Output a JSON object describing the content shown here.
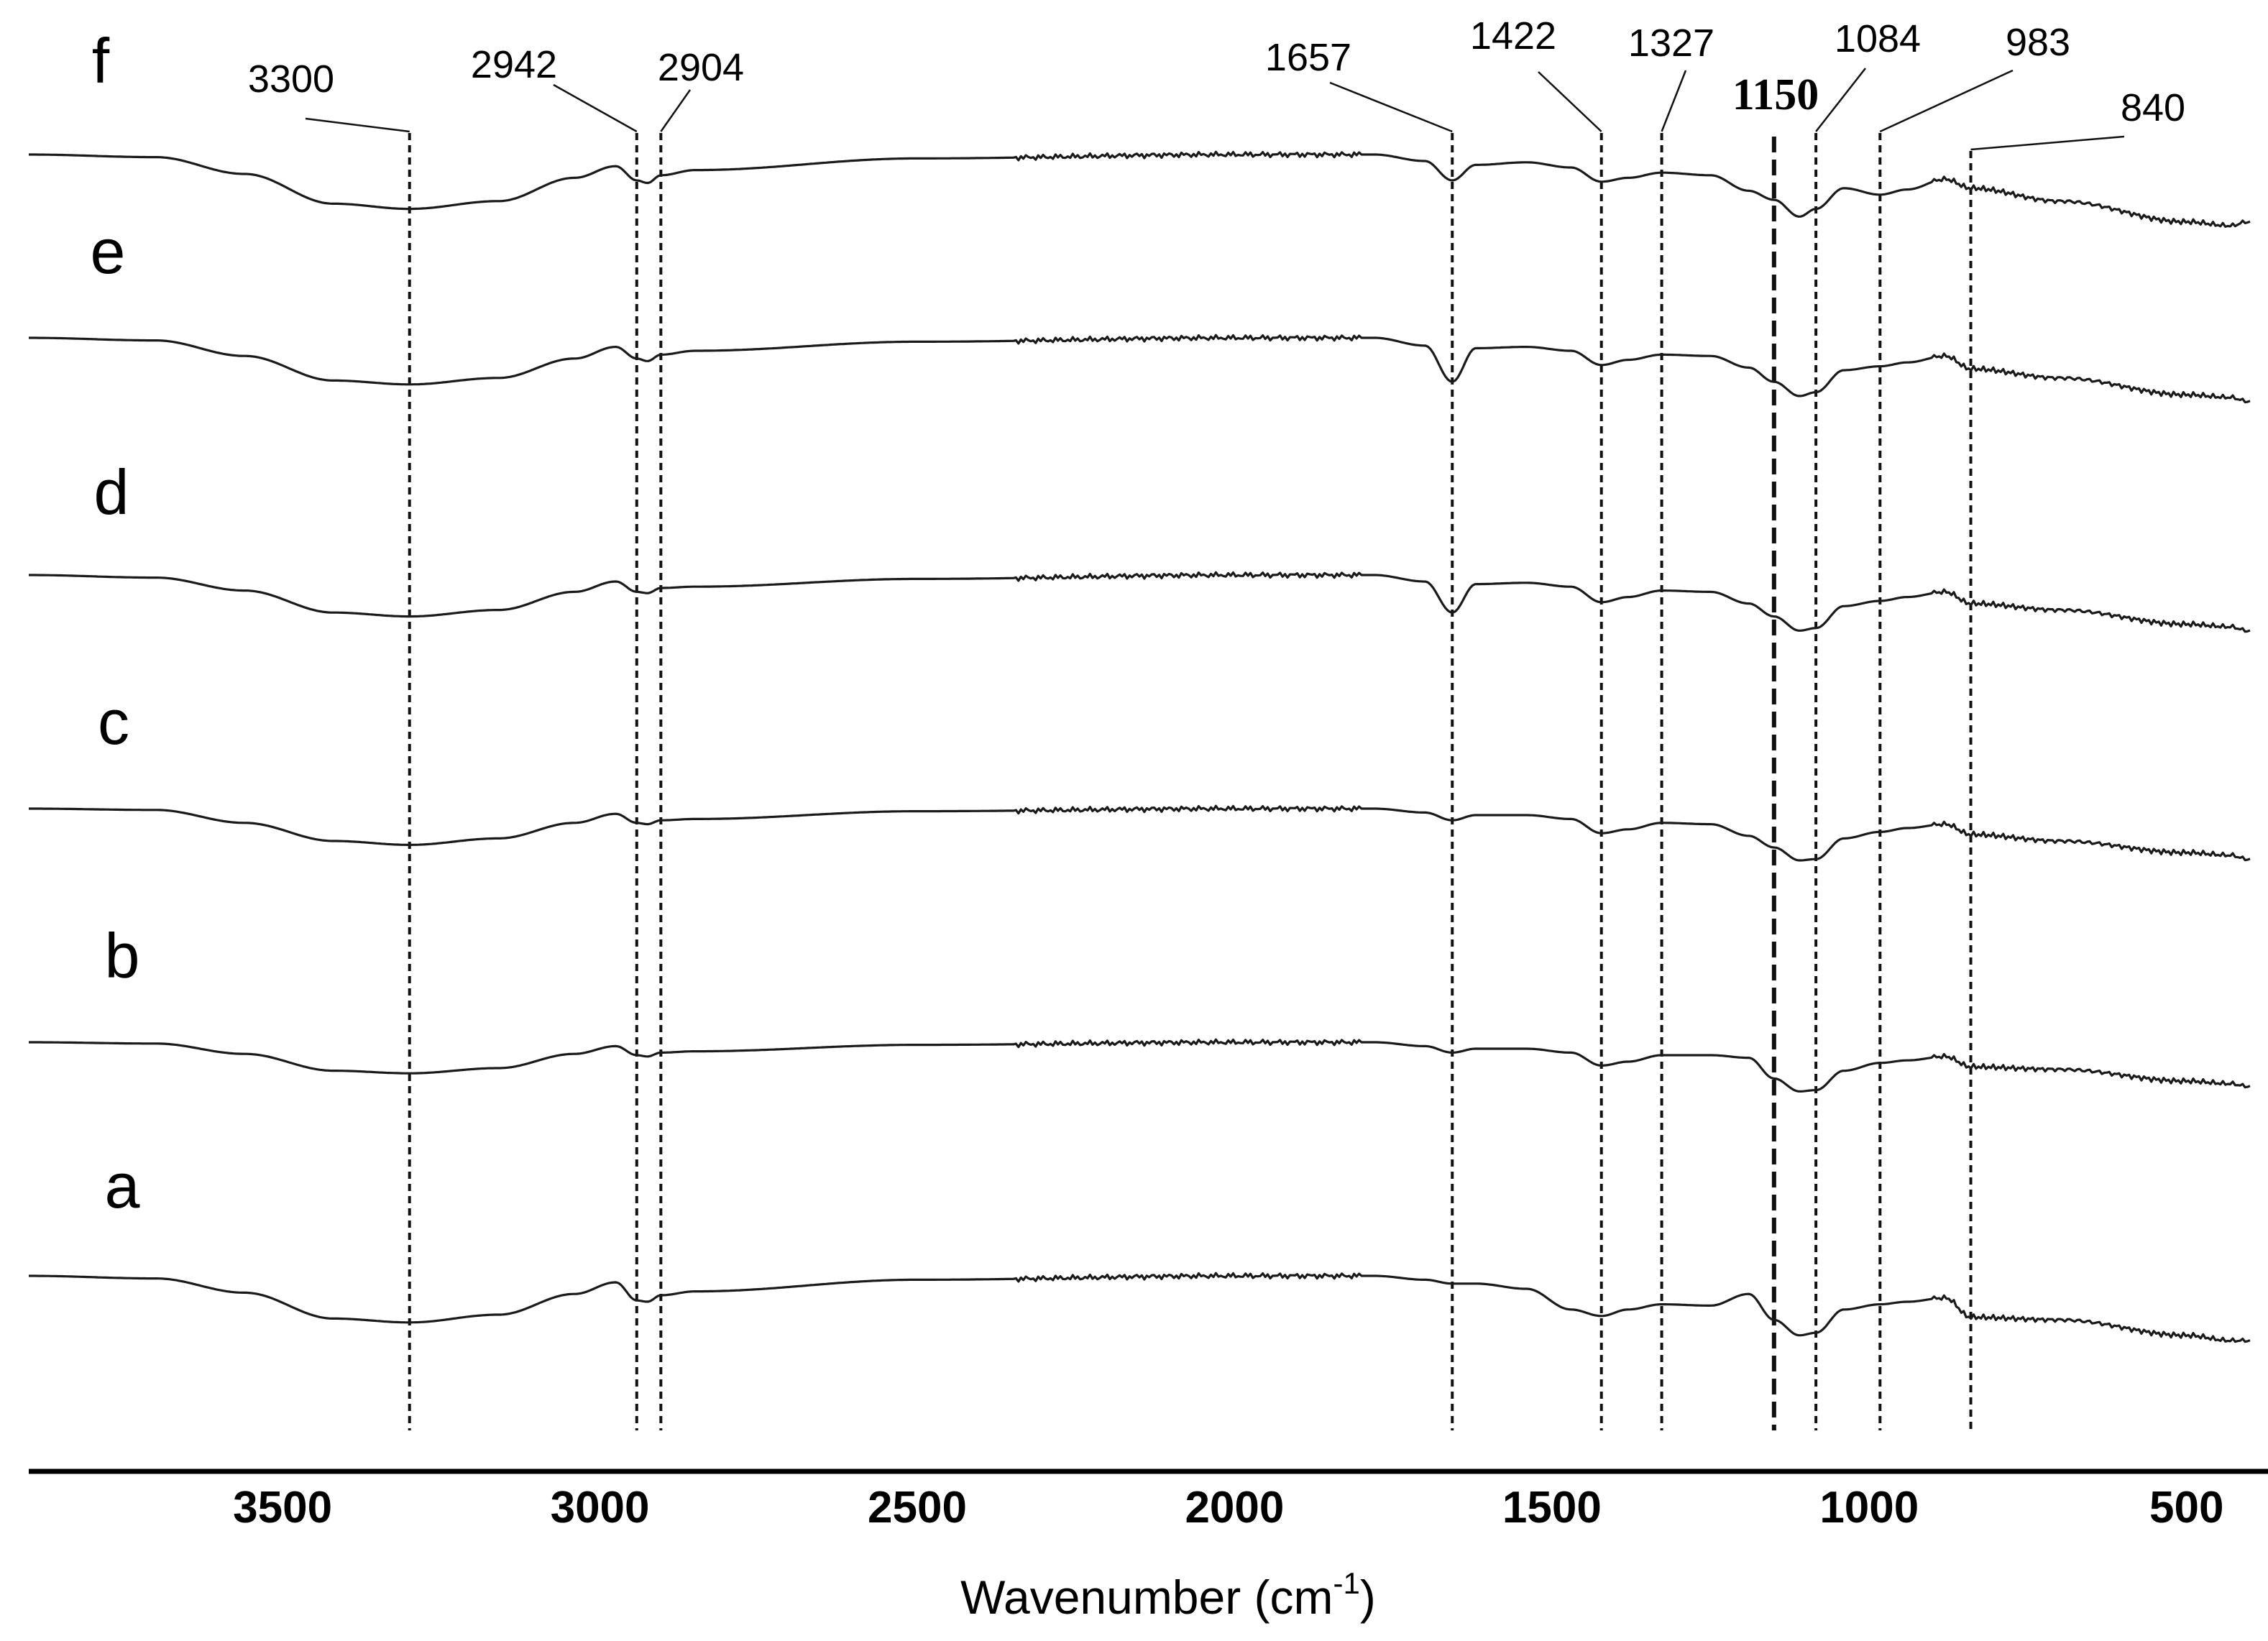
{
  "chart_data": {
    "type": "line",
    "title": "",
    "xlabel": "Wavenumber (cm",
    "xlabel_sup": "-1",
    "ylabel": "",
    "xlim": [
      3900,
      400
    ],
    "x_reversed": true,
    "x_ticks": [
      3500,
      3000,
      2500,
      2000,
      1500,
      1000,
      500
    ],
    "grid": false,
    "legend": "none",
    "peaks": [
      {
        "value": 3300,
        "label": "3300"
      },
      {
        "value": 2942,
        "label": "2942"
      },
      {
        "value": 2904,
        "label": "2904"
      },
      {
        "value": 1657,
        "label": "1657"
      },
      {
        "value": 1422,
        "label": "1422"
      },
      {
        "value": 1327,
        "label": "1327"
      },
      {
        "value": 1150,
        "label": "1150",
        "emphasis": "bold"
      },
      {
        "value": 1084,
        "label": "1084"
      },
      {
        "value": 983,
        "label": "983"
      },
      {
        "value": 840,
        "label": "840"
      }
    ],
    "series": [
      {
        "name": "f",
        "offset": 0,
        "points": [
          [
            3900,
            0
          ],
          [
            3700,
            0.2
          ],
          [
            3560,
            1.5
          ],
          [
            3420,
            3.8
          ],
          [
            3300,
            4.2
          ],
          [
            3160,
            3.6
          ],
          [
            3040,
            1.8
          ],
          [
            2975,
            0.9
          ],
          [
            2942,
            2.0
          ],
          [
            2925,
            2.2
          ],
          [
            2904,
            1.6
          ],
          [
            2850,
            1.2
          ],
          [
            2500,
            0.3
          ],
          [
            2000,
            0
          ],
          [
            1780,
            0
          ],
          [
            1700,
            0.5
          ],
          [
            1657,
            2.0
          ],
          [
            1620,
            0.8
          ],
          [
            1540,
            0.6
          ],
          [
            1470,
            1.0
          ],
          [
            1422,
            2.1
          ],
          [
            1380,
            1.8
          ],
          [
            1327,
            1.4
          ],
          [
            1250,
            1.6
          ],
          [
            1190,
            2.8
          ],
          [
            1150,
            3.5
          ],
          [
            1110,
            4.8
          ],
          [
            1084,
            4.2
          ],
          [
            1040,
            2.6
          ],
          [
            983,
            3.1
          ],
          [
            940,
            2.7
          ],
          [
            880,
            1.9
          ],
          [
            840,
            2.6
          ],
          [
            700,
            3.6
          ],
          [
            500,
            5.2
          ],
          [
            430,
            5.5
          ],
          [
            405,
            5.2
          ]
        ]
      },
      {
        "name": "e",
        "offset": 1,
        "points": [
          [
            3900,
            0
          ],
          [
            3700,
            0.2
          ],
          [
            3560,
            1.4
          ],
          [
            3420,
            3.3
          ],
          [
            3300,
            3.6
          ],
          [
            3160,
            3.1
          ],
          [
            3040,
            1.6
          ],
          [
            2975,
            0.7
          ],
          [
            2942,
            1.6
          ],
          [
            2925,
            1.8
          ],
          [
            2904,
            1.3
          ],
          [
            2850,
            1.0
          ],
          [
            2500,
            0.3
          ],
          [
            2000,
            0
          ],
          [
            1780,
            0
          ],
          [
            1700,
            0.6
          ],
          [
            1657,
            3.4
          ],
          [
            1620,
            0.8
          ],
          [
            1540,
            0.7
          ],
          [
            1470,
            1.0
          ],
          [
            1422,
            2.1
          ],
          [
            1380,
            1.7
          ],
          [
            1327,
            1.3
          ],
          [
            1250,
            1.4
          ],
          [
            1190,
            2.3
          ],
          [
            1150,
            3.4
          ],
          [
            1110,
            4.5
          ],
          [
            1084,
            4.2
          ],
          [
            1040,
            2.5
          ],
          [
            983,
            2.2
          ],
          [
            940,
            1.9
          ],
          [
            880,
            1.4
          ],
          [
            840,
            2.4
          ],
          [
            700,
            3.1
          ],
          [
            500,
            4.4
          ],
          [
            430,
            4.6
          ],
          [
            405,
            4.9
          ]
        ]
      },
      {
        "name": "d",
        "offset": 2,
        "points": [
          [
            3900,
            0
          ],
          [
            3700,
            0.2
          ],
          [
            3560,
            1.2
          ],
          [
            3420,
            2.9
          ],
          [
            3300,
            3.2
          ],
          [
            3160,
            2.7
          ],
          [
            3040,
            1.3
          ],
          [
            2975,
            0.5
          ],
          [
            2942,
            1.3
          ],
          [
            2925,
            1.4
          ],
          [
            2904,
            1.0
          ],
          [
            2850,
            0.9
          ],
          [
            2500,
            0.3
          ],
          [
            2000,
            0
          ],
          [
            1780,
            0
          ],
          [
            1700,
            0.5
          ],
          [
            1657,
            2.9
          ],
          [
            1620,
            0.7
          ],
          [
            1540,
            0.6
          ],
          [
            1470,
            0.9
          ],
          [
            1422,
            2.1
          ],
          [
            1380,
            1.7
          ],
          [
            1327,
            1.2
          ],
          [
            1250,
            1.3
          ],
          [
            1190,
            2.2
          ],
          [
            1150,
            3.2
          ],
          [
            1110,
            4.3
          ],
          [
            1084,
            4.1
          ],
          [
            1040,
            2.4
          ],
          [
            983,
            2.0
          ],
          [
            940,
            1.7
          ],
          [
            880,
            1.3
          ],
          [
            840,
            2.2
          ],
          [
            700,
            2.7
          ],
          [
            500,
            3.8
          ],
          [
            430,
            4.0
          ],
          [
            405,
            4.3
          ]
        ]
      },
      {
        "name": "c",
        "offset": 3,
        "points": [
          [
            3900,
            0
          ],
          [
            3700,
            0.1
          ],
          [
            3560,
            1.1
          ],
          [
            3420,
            2.5
          ],
          [
            3300,
            2.8
          ],
          [
            3160,
            2.3
          ],
          [
            3040,
            1.1
          ],
          [
            2975,
            0.4
          ],
          [
            2942,
            1.1
          ],
          [
            2925,
            1.2
          ],
          [
            2904,
            0.9
          ],
          [
            2850,
            0.8
          ],
          [
            2500,
            0.2
          ],
          [
            2000,
            0
          ],
          [
            1780,
            0
          ],
          [
            1700,
            0.3
          ],
          [
            1657,
            0.9
          ],
          [
            1620,
            0.5
          ],
          [
            1540,
            0.5
          ],
          [
            1470,
            0.8
          ],
          [
            1422,
            1.9
          ],
          [
            1380,
            1.6
          ],
          [
            1327,
            1.1
          ],
          [
            1250,
            1.2
          ],
          [
            1190,
            2.1
          ],
          [
            1150,
            3.0
          ],
          [
            1110,
            4.0
          ],
          [
            1084,
            3.9
          ],
          [
            1040,
            2.3
          ],
          [
            983,
            1.8
          ],
          [
            940,
            1.5
          ],
          [
            880,
            1.2
          ],
          [
            840,
            2.0
          ],
          [
            700,
            2.5
          ],
          [
            500,
            3.4
          ],
          [
            430,
            3.6
          ],
          [
            405,
            3.9
          ]
        ]
      },
      {
        "name": "b",
        "offset": 4,
        "points": [
          [
            3900,
            0
          ],
          [
            3700,
            0.1
          ],
          [
            3560,
            0.9
          ],
          [
            3420,
            2.2
          ],
          [
            3300,
            2.4
          ],
          [
            3160,
            2.0
          ],
          [
            3040,
            0.9
          ],
          [
            2975,
            0.3
          ],
          [
            2942,
            1.0
          ],
          [
            2925,
            1.1
          ],
          [
            2904,
            0.8
          ],
          [
            2850,
            0.7
          ],
          [
            2500,
            0.2
          ],
          [
            2000,
            0
          ],
          [
            1780,
            0
          ],
          [
            1700,
            0.3
          ],
          [
            1657,
            0.8
          ],
          [
            1620,
            0.5
          ],
          [
            1540,
            0.5
          ],
          [
            1470,
            0.8
          ],
          [
            1422,
            1.8
          ],
          [
            1380,
            1.5
          ],
          [
            1327,
            1.0
          ],
          [
            1250,
            1.0
          ],
          [
            1190,
            1.2
          ],
          [
            1150,
            2.8
          ],
          [
            1110,
            3.8
          ],
          [
            1084,
            3.7
          ],
          [
            1040,
            2.2
          ],
          [
            983,
            1.6
          ],
          [
            940,
            1.4
          ],
          [
            880,
            1.1
          ],
          [
            840,
            1.9
          ],
          [
            700,
            2.1
          ],
          [
            500,
            3.0
          ],
          [
            430,
            3.2
          ],
          [
            405,
            3.4
          ]
        ]
      },
      {
        "name": "a",
        "offset": 5,
        "points": [
          [
            3900,
            0
          ],
          [
            3700,
            0.2
          ],
          [
            3560,
            1.3
          ],
          [
            3420,
            3.3
          ],
          [
            3300,
            3.6
          ],
          [
            3160,
            3.0
          ],
          [
            3040,
            1.4
          ],
          [
            2975,
            0.5
          ],
          [
            2942,
            1.9
          ],
          [
            2925,
            2.0
          ],
          [
            2904,
            1.5
          ],
          [
            2850,
            1.2
          ],
          [
            2500,
            0.3
          ],
          [
            2000,
            0
          ],
          [
            1780,
            0
          ],
          [
            1700,
            0.3
          ],
          [
            1657,
            0.6
          ],
          [
            1620,
            0.6
          ],
          [
            1540,
            1.0
          ],
          [
            1470,
            2.6
          ],
          [
            1422,
            3.1
          ],
          [
            1380,
            2.6
          ],
          [
            1327,
            2.2
          ],
          [
            1250,
            2.3
          ],
          [
            1190,
            1.4
          ],
          [
            1150,
            3.4
          ],
          [
            1110,
            4.6
          ],
          [
            1084,
            4.4
          ],
          [
            1040,
            2.6
          ],
          [
            983,
            2.2
          ],
          [
            940,
            2.0
          ],
          [
            880,
            1.7
          ],
          [
            840,
            3.2
          ],
          [
            700,
            3.4
          ],
          [
            500,
            4.6
          ],
          [
            430,
            5.0
          ],
          [
            405,
            5.0
          ]
        ]
      }
    ]
  }
}
